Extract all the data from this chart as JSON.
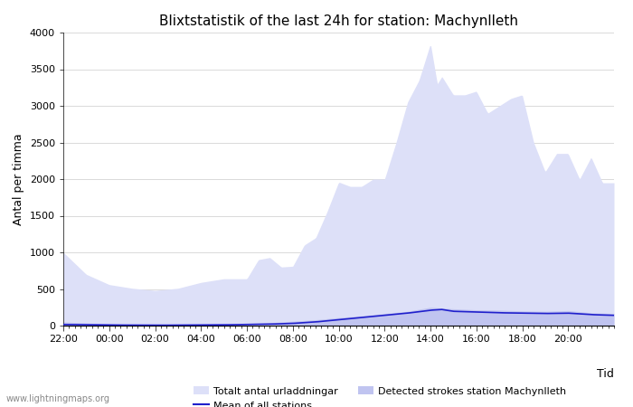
{
  "title": "Blixtstatistik of the last 24h for station: Machynlleth",
  "ylabel": "Antal per timma",
  "xlabel": "Tid",
  "watermark": "www.lightningmaps.org",
  "ylim": [
    0,
    4000
  ],
  "yticks": [
    0,
    500,
    1000,
    1500,
    2000,
    2500,
    3000,
    3500,
    4000
  ],
  "xtick_labels": [
    "22:00",
    "00:00",
    "02:00",
    "04:00",
    "06:00",
    "08:00",
    "10:00",
    "12:00",
    "14:00",
    "16:00",
    "18:00",
    "20:00"
  ],
  "legend_labels": [
    "Totalt antal urladdningar",
    "Mean of all stations",
    "Detected strokes station Machynlleth"
  ],
  "color_total": "#dde0f8",
  "color_station": "#c0c4f0",
  "color_mean": "#2020cc",
  "background_color": "#ffffff",
  "title_fontsize": 11,
  "tick_color": "#555555",
  "grid_color": "#cccccc"
}
